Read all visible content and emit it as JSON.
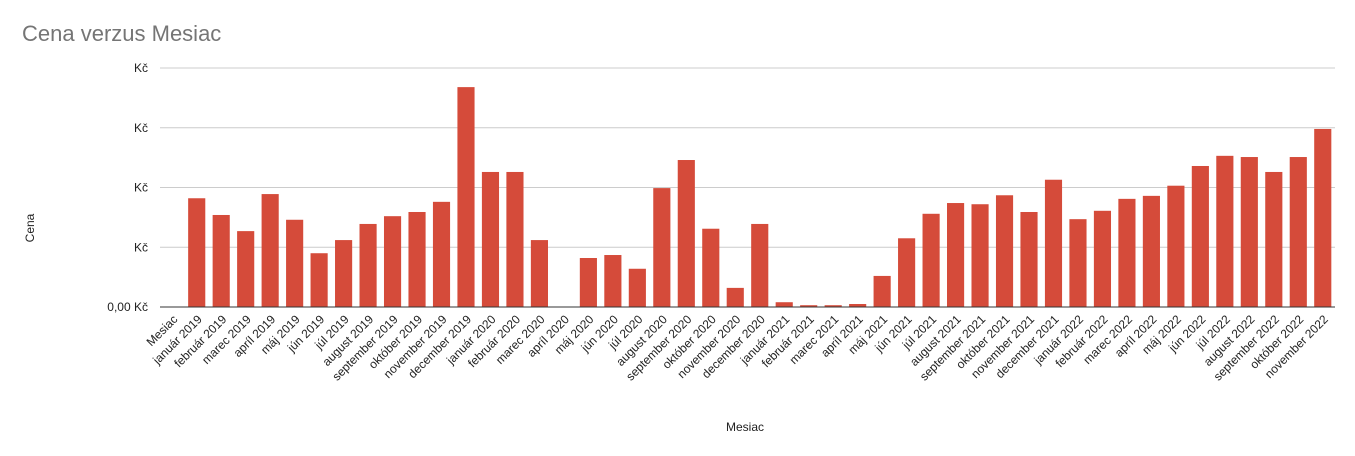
{
  "chart_data": {
    "type": "bar",
    "title": "Cena verzus Mesiac",
    "y_label": "Cena",
    "x_label": "Mesiac",
    "categories": [
      "Mesiac",
      "január 2019",
      "február 2019",
      "marec 2019",
      "apríl 2019",
      "máj 2019",
      "jún 2019",
      "júl 2019",
      "august 2019",
      "september 2019",
      "október 2019",
      "november 2019",
      "december 2019",
      "január 2020",
      "február 2020",
      "marec 2020",
      "apríl 2020",
      "máj 2020",
      "jún 2020",
      "júl 2020",
      "august 2020",
      "september 2020",
      "október 2020",
      "november 2020",
      "december 2020",
      "január 2021",
      "február 2021",
      "marec 2021",
      "apríl 2021",
      "máj 2021",
      "jún 2021",
      "júl 2021",
      "august 2021",
      "september 2021",
      "október 2021",
      "november 2021",
      "december 2021",
      "január 2022",
      "február 2022",
      "marec 2022",
      "apríl 2022",
      "máj 2022",
      "jún 2022",
      "júl 2022",
      "august 2022",
      "september 2022",
      "október 2022",
      "november 2022"
    ],
    "values": [
      null,
      1.82,
      1.54,
      1.27,
      1.89,
      1.46,
      0.9,
      1.12,
      1.39,
      1.52,
      1.59,
      1.76,
      3.68,
      2.26,
      2.26,
      1.12,
      null,
      0.82,
      0.87,
      0.64,
      1.99,
      2.46,
      1.31,
      0.32,
      1.39,
      0.08,
      0.03,
      0.03,
      0.05,
      0.52,
      1.15,
      1.56,
      1.74,
      1.72,
      1.87,
      1.59,
      2.13,
      1.47,
      1.61,
      1.81,
      1.86,
      2.03,
      2.36,
      2.53,
      2.51,
      2.26,
      2.51,
      2.98
    ],
    "color": "#d54b3a",
    "ylim": [
      0,
      4
    ],
    "yticks": [
      {
        "value": 0,
        "label": "0,00 Kč"
      },
      {
        "value": 1,
        "label": "Kč"
      },
      {
        "value": 2,
        "label": "Kč"
      },
      {
        "value": 3,
        "label": "Kč"
      },
      {
        "value": 4,
        "label": "Kč"
      }
    ],
    "grid": true
  }
}
